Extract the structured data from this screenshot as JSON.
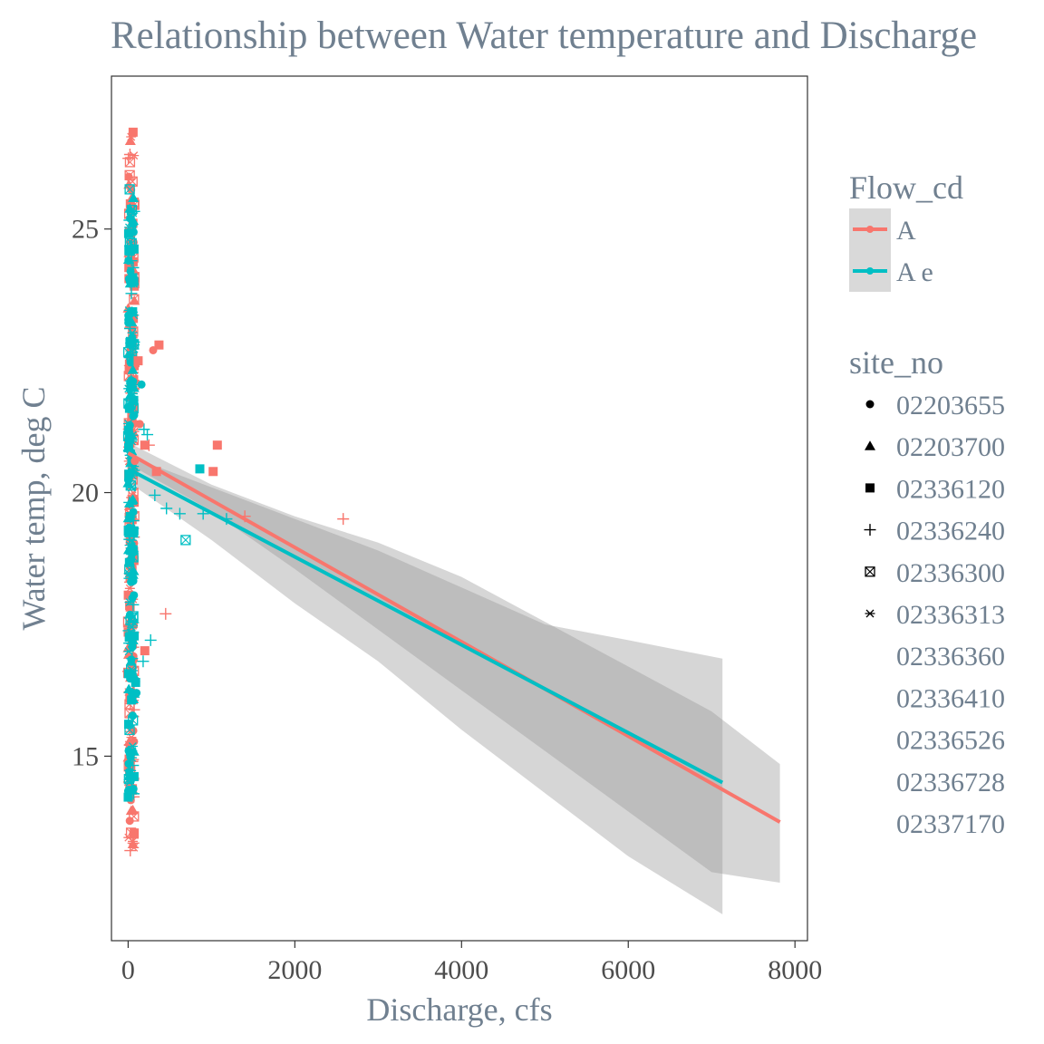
{
  "chart_data": {
    "type": "scatter",
    "title": "Relationship between Water temperature and Discharge",
    "xlabel": "Discharge, cfs",
    "ylabel": "Water temp, deg C",
    "xlim": [
      -200,
      8150
    ],
    "ylim": [
      11.5,
      27.9
    ],
    "x_ticks": [
      0,
      2000,
      4000,
      6000,
      8000
    ],
    "x_tick_labels": [
      "0",
      "2000",
      "4000",
      "6000",
      "8000"
    ],
    "y_ticks": [
      15,
      20,
      25
    ],
    "y_tick_labels": [
      "15",
      "20",
      "25"
    ],
    "colors": {
      "A": "#F8766D",
      "A e": "#00BFC4",
      "ribbon": "#999999",
      "text": "#708090"
    },
    "legend_flow": {
      "title": "Flow_cd",
      "items": [
        {
          "label": "A",
          "color": "#F8766D"
        },
        {
          "label": "A e",
          "color": "#00BFC4"
        }
      ]
    },
    "legend_site": {
      "title": "site_no",
      "items": [
        {
          "label": "02203655",
          "shape": "circle"
        },
        {
          "label": "02203700",
          "shape": "triangle"
        },
        {
          "label": "02336120",
          "shape": "square"
        },
        {
          "label": "02336240",
          "shape": "plus"
        },
        {
          "label": "02336300",
          "shape": "boxx"
        },
        {
          "label": "02336313",
          "shape": "asterisk"
        },
        {
          "label": "02336360",
          "shape": "none"
        },
        {
          "label": "02336410",
          "shape": "none"
        },
        {
          "label": "02336526",
          "shape": "none"
        },
        {
          "label": "02336728",
          "shape": "none"
        },
        {
          "label": "02337170",
          "shape": "none"
        }
      ]
    },
    "series": [
      {
        "name": "A",
        "fit": {
          "x": [
            0,
            7820
          ],
          "y": [
            20.75,
            13.75
          ]
        },
        "ci": {
          "x": [
            0,
            1000,
            2000,
            3000,
            4000,
            5000,
            6000,
            7000,
            7820
          ],
          "upper": [
            20.95,
            20.15,
            19.55,
            19.05,
            18.4,
            17.55,
            16.7,
            15.85,
            14.85
          ],
          "lower": [
            20.55,
            19.65,
            18.55,
            17.4,
            16.25,
            15.1,
            13.95,
            12.8,
            12.6
          ]
        }
      },
      {
        "name": "A e",
        "fit": {
          "x": [
            0,
            7130
          ],
          "y": [
            20.45,
            14.5
          ]
        },
        "ci": {
          "x": [
            0,
            1000,
            2000,
            3000,
            4000,
            5000,
            6000,
            7130
          ],
          "upper": [
            20.7,
            20.1,
            19.5,
            18.9,
            18.2,
            17.5,
            17.2,
            16.85
          ],
          "lower": [
            20.2,
            19.1,
            17.9,
            16.8,
            15.5,
            14.3,
            13.1,
            12.0
          ]
        }
      }
    ],
    "points": [
      {
        "x": 190,
        "y": 21.2,
        "site": "plus",
        "flow": "A e"
      },
      {
        "x": 230,
        "y": 21.1,
        "site": "plus",
        "flow": "A e"
      },
      {
        "x": 320,
        "y": 19.95,
        "site": "plus",
        "flow": "A e"
      },
      {
        "x": 460,
        "y": 19.7,
        "site": "plus",
        "flow": "A e"
      },
      {
        "x": 620,
        "y": 19.6,
        "site": "plus",
        "flow": "A e"
      },
      {
        "x": 900,
        "y": 19.6,
        "site": "plus",
        "flow": "A e"
      },
      {
        "x": 1180,
        "y": 19.5,
        "site": "plus",
        "flow": "A e"
      },
      {
        "x": 270,
        "y": 17.2,
        "site": "plus",
        "flow": "A e"
      },
      {
        "x": 180,
        "y": 16.8,
        "site": "plus",
        "flow": "A e"
      },
      {
        "x": 160,
        "y": 22.05,
        "site": "circle",
        "flow": "A e"
      },
      {
        "x": 860,
        "y": 20.45,
        "site": "square",
        "flow": "A e"
      },
      {
        "x": 690,
        "y": 19.1,
        "site": "boxx",
        "flow": "A e"
      },
      {
        "x": 100,
        "y": 16.2,
        "site": "circle",
        "flow": "A e"
      },
      {
        "x": 90,
        "y": 16.4,
        "site": "square",
        "flow": "A e"
      },
      {
        "x": 2580,
        "y": 19.5,
        "site": "plus",
        "flow": "A"
      },
      {
        "x": 1400,
        "y": 19.55,
        "site": "plus",
        "flow": "A"
      },
      {
        "x": 450,
        "y": 17.7,
        "site": "plus",
        "flow": "A"
      },
      {
        "x": 250,
        "y": 20.9,
        "site": "plus",
        "flow": "A"
      },
      {
        "x": 300,
        "y": 22.7,
        "site": "circle",
        "flow": "A"
      },
      {
        "x": 370,
        "y": 22.8,
        "site": "square",
        "flow": "A"
      },
      {
        "x": 1070,
        "y": 20.9,
        "site": "square",
        "flow": "A"
      },
      {
        "x": 1020,
        "y": 20.4,
        "site": "square",
        "flow": "A"
      },
      {
        "x": 200,
        "y": 20.9,
        "site": "square",
        "flow": "A"
      },
      {
        "x": 340,
        "y": 20.4,
        "site": "square",
        "flow": "A"
      },
      {
        "x": 200,
        "y": 17.0,
        "site": "square",
        "flow": "A"
      },
      {
        "x": 140,
        "y": 21.3,
        "site": "circle",
        "flow": "A"
      },
      {
        "x": 120,
        "y": 22.5,
        "site": "square",
        "flow": "A"
      },
      {
        "x": 80,
        "y": 20.6,
        "site": "circle",
        "flow": "A"
      }
    ],
    "column_points": {
      "x_range": [
        0,
        75
      ],
      "y_range_A": [
        13.1,
        26.9
      ],
      "y_range_Ae": [
        14.2,
        25.8
      ],
      "count_each": 220
    }
  }
}
